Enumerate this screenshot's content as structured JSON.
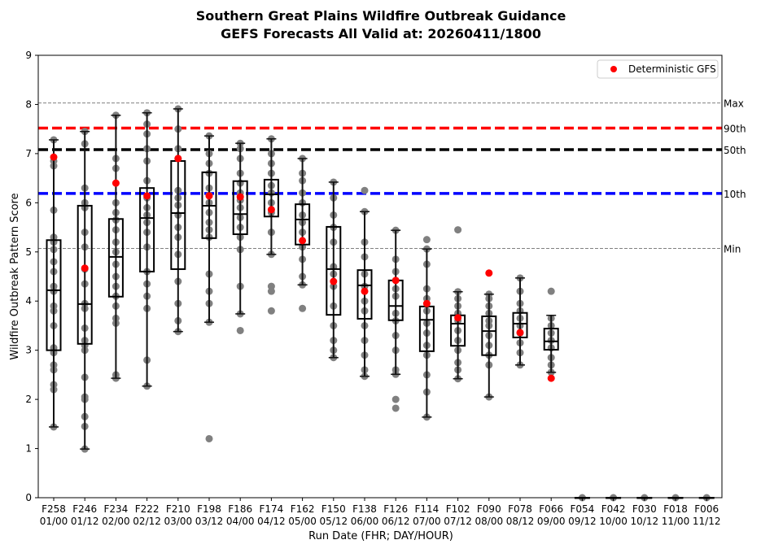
{
  "chart_data": {
    "type": "box",
    "title": "Southern Great Plains Wildfire Outbreak Guidance",
    "subtitle": "GEFS Forecasts All Valid at: 20260411/1800",
    "xlabel": "Run Date (FHR; DAY/HOUR)",
    "ylabel": "Wildfire Outbreak Pattern Score",
    "ylim": [
      0,
      9
    ],
    "yticks": [
      "0",
      "1",
      "2",
      "3",
      "4",
      "5",
      "6",
      "7",
      "8",
      "9"
    ],
    "categories": [
      "F258",
      "F246",
      "F234",
      "F222",
      "F210",
      "F198",
      "F186",
      "F174",
      "F162",
      "F150",
      "F138",
      "F126",
      "F114",
      "F102",
      "F090",
      "F078",
      "F066",
      "F054",
      "F042",
      "F030",
      "F018",
      "F006"
    ],
    "category_times": [
      "01/00",
      "01/12",
      "02/00",
      "02/12",
      "03/00",
      "03/12",
      "04/00",
      "04/12",
      "05/00",
      "05/12",
      "06/00",
      "06/12",
      "07/00",
      "07/12",
      "08/00",
      "08/12",
      "09/00",
      "09/12",
      "10/00",
      "10/12",
      "11/00",
      "11/12"
    ],
    "boxes": [
      {
        "low": 1.44,
        "q1": 3.0,
        "median": 4.22,
        "q3": 5.24,
        "high": 7.28
      },
      {
        "low": 0.99,
        "q1": 3.13,
        "median": 3.94,
        "q3": 5.94,
        "high": 7.45
      },
      {
        "low": 2.43,
        "q1": 4.09,
        "median": 4.9,
        "q3": 5.67,
        "high": 7.78
      },
      {
        "low": 2.27,
        "q1": 4.6,
        "median": 5.69,
        "q3": 6.3,
        "high": 7.83
      },
      {
        "low": 3.38,
        "q1": 4.65,
        "median": 5.79,
        "q3": 6.85,
        "high": 7.91
      },
      {
        "low": 3.57,
        "q1": 5.28,
        "median": 5.94,
        "q3": 6.62,
        "high": 7.36
      },
      {
        "low": 3.74,
        "q1": 5.36,
        "median": 5.77,
        "q3": 6.44,
        "high": 7.21
      },
      {
        "low": 4.95,
        "q1": 5.72,
        "median": 6.17,
        "q3": 6.47,
        "high": 7.3
      },
      {
        "low": 4.33,
        "q1": 5.15,
        "median": 5.66,
        "q3": 5.97,
        "high": 6.9
      },
      {
        "low": 2.85,
        "q1": 3.72,
        "median": 4.65,
        "q3": 5.51,
        "high": 6.42
      },
      {
        "low": 2.47,
        "q1": 3.64,
        "median": 4.32,
        "q3": 4.63,
        "high": 5.82
      },
      {
        "low": 2.51,
        "q1": 3.61,
        "median": 3.9,
        "q3": 4.42,
        "high": 5.44
      },
      {
        "low": 1.64,
        "q1": 2.98,
        "median": 3.62,
        "q3": 3.89,
        "high": 5.06
      },
      {
        "low": 2.42,
        "q1": 3.09,
        "median": 3.54,
        "q3": 3.71,
        "high": 4.19
      },
      {
        "low": 2.05,
        "q1": 2.9,
        "median": 3.39,
        "q3": 3.69,
        "high": 4.14
      },
      {
        "low": 2.7,
        "q1": 3.26,
        "median": 3.54,
        "q3": 3.76,
        "high": 4.47
      },
      {
        "low": 2.55,
        "q1": 3.01,
        "median": 3.18,
        "q3": 3.44,
        "high": 3.71
      },
      {
        "low": 0,
        "q1": 0,
        "median": 0,
        "q3": 0,
        "high": 0
      },
      {
        "low": 0,
        "q1": 0,
        "median": 0,
        "q3": 0,
        "high": 0
      },
      {
        "low": 0,
        "q1": 0,
        "median": 0,
        "q3": 0,
        "high": 0
      },
      {
        "low": 0,
        "q1": 0,
        "median": 0,
        "q3": 0,
        "high": 0
      },
      {
        "low": 0,
        "q1": 0,
        "median": 0,
        "q3": 0,
        "high": 0
      }
    ],
    "members": [
      [
        1.44,
        2.2,
        2.3,
        2.6,
        2.7,
        2.95,
        3.05,
        3.5,
        3.8,
        3.9,
        4.2,
        4.3,
        4.6,
        4.8,
        5.05,
        5.2,
        5.3,
        5.85,
        6.75,
        6.85,
        7.28
      ],
      [
        0.99,
        1.45,
        1.65,
        2.0,
        2.05,
        2.45,
        3.0,
        3.1,
        3.2,
        3.45,
        3.85,
        3.95,
        4.35,
        4.65,
        5.1,
        5.4,
        5.9,
        6.0,
        6.3,
        7.2,
        7.45
      ],
      [
        2.43,
        2.5,
        3.55,
        3.65,
        3.9,
        4.1,
        4.3,
        4.5,
        4.75,
        5.0,
        5.2,
        5.45,
        5.65,
        5.8,
        6.0,
        6.7,
        6.9,
        7.78
      ],
      [
        2.27,
        2.8,
        3.85,
        4.1,
        4.35,
        4.6,
        5.1,
        5.4,
        5.6,
        5.75,
        5.9,
        6.1,
        6.45,
        6.85,
        7.1,
        7.4,
        7.6,
        7.83
      ],
      [
        3.38,
        3.6,
        3.95,
        4.4,
        4.95,
        5.3,
        5.5,
        5.75,
        5.95,
        6.1,
        6.25,
        6.9,
        7.1,
        7.5,
        7.91
      ],
      [
        1.2,
        3.57,
        3.95,
        4.2,
        4.55,
        5.3,
        5.45,
        5.6,
        5.8,
        6.0,
        6.15,
        6.3,
        6.6,
        6.8,
        7.0,
        7.36
      ],
      [
        3.4,
        3.74,
        4.3,
        5.05,
        5.3,
        5.5,
        5.7,
        5.9,
        6.05,
        6.2,
        6.4,
        6.6,
        6.9,
        7.1,
        7.21
      ],
      [
        3.8,
        4.2,
        4.3,
        4.95,
        5.4,
        5.8,
        6.0,
        6.2,
        6.35,
        6.6,
        6.8,
        7.0,
        7.3
      ],
      [
        3.85,
        4.33,
        4.5,
        4.85,
        5.1,
        5.4,
        5.6,
        5.75,
        6.0,
        6.2,
        6.45,
        6.6,
        6.9
      ],
      [
        2.85,
        3.0,
        3.2,
        3.5,
        3.9,
        4.3,
        4.55,
        4.7,
        5.2,
        5.5,
        5.75,
        6.1,
        6.42
      ],
      [
        2.47,
        2.6,
        2.9,
        3.2,
        3.5,
        3.8,
        4.0,
        4.3,
        4.55,
        4.9,
        5.2,
        5.82,
        6.25
      ],
      [
        1.82,
        2.0,
        2.51,
        2.6,
        3.0,
        3.3,
        3.6,
        3.75,
        4.1,
        4.25,
        4.6,
        4.85,
        5.44
      ],
      [
        1.64,
        2.15,
        2.5,
        2.9,
        3.1,
        3.35,
        3.55,
        3.8,
        4.05,
        4.25,
        4.75,
        5.06,
        5.25
      ],
      [
        2.42,
        2.6,
        2.75,
        3.0,
        3.2,
        3.4,
        3.6,
        3.75,
        3.9,
        4.05,
        4.19,
        5.45
      ],
      [
        2.05,
        2.7,
        2.9,
        3.1,
        3.3,
        3.5,
        3.6,
        3.75,
        3.9,
        4.05,
        4.14
      ],
      [
        2.7,
        2.95,
        3.15,
        3.35,
        3.5,
        3.65,
        3.8,
        3.95,
        4.2,
        4.47
      ],
      [
        2.55,
        2.7,
        2.85,
        3.05,
        3.2,
        3.35,
        3.5,
        3.65,
        4.2
      ],
      [
        0
      ],
      [
        0
      ],
      [
        0
      ],
      [
        0
      ],
      [
        0
      ]
    ],
    "deterministic_gfs": [
      6.93,
      4.67,
      6.4,
      6.14,
      6.9,
      6.14,
      6.12,
      5.86,
      5.23,
      4.4,
      4.2,
      4.42,
      3.95,
      3.66,
      4.57,
      3.36,
      2.43,
      null,
      null,
      null,
      null,
      null
    ],
    "reference_lines": [
      {
        "label": "Max",
        "value": 8.03,
        "color": "#808080",
        "style": "thin"
      },
      {
        "label": "90th",
        "value": 7.52,
        "color": "#ff0000",
        "style": "thick"
      },
      {
        "label": "50th",
        "value": 7.08,
        "color": "#000000",
        "style": "thick"
      },
      {
        "label": "10th",
        "value": 6.19,
        "color": "#0000ff",
        "style": "thick"
      },
      {
        "label": "Min",
        "value": 5.07,
        "color": "#808080",
        "style": "thin"
      }
    ],
    "legend": {
      "entries": [
        "Deterministic GFS"
      ],
      "placement": "top-right"
    },
    "colors": {
      "members": "#808080",
      "deterministic": "#ff0000",
      "box": "#000000"
    }
  }
}
